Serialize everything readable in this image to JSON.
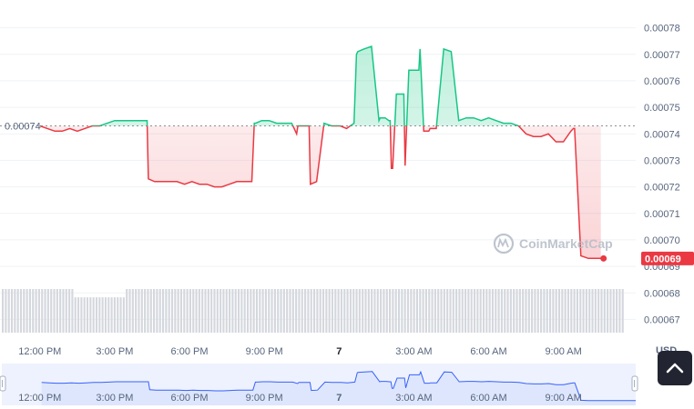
{
  "chart_data": {
    "type": "line",
    "y_ticks": [
      "0.00078",
      "0.00077",
      "0.00076",
      "0.00075",
      "0.00074",
      "0.00073",
      "0.00072",
      "0.00071",
      "0.00070",
      "0.00069",
      "0.00068",
      "0.00067"
    ],
    "ylim": [
      0.000665,
      0.000785
    ],
    "unit_label": "USD",
    "x_ticks": [
      {
        "t": 0,
        "label": "12:00 PM"
      },
      {
        "t": 3,
        "label": "3:00 PM"
      },
      {
        "t": 6,
        "label": "6:00 PM"
      },
      {
        "t": 9,
        "label": "9:00 PM"
      },
      {
        "t": 12,
        "label": "7",
        "bold": true
      },
      {
        "t": 15,
        "label": "3:00 AM"
      },
      {
        "t": 18,
        "label": "6:00 AM"
      },
      {
        "t": 21,
        "label": "9:00 AM"
      }
    ],
    "xlim": [
      -1.6,
      23.9
    ],
    "reference_label": "0.00074",
    "reference_value": 0.000743,
    "current_label": "0.00069",
    "current_value": 0.000693,
    "up_color": "#16c784",
    "down_color": "#ea3943",
    "watermark": "CoinMarketCap",
    "series": {
      "x": [
        0.0,
        0.3,
        0.6,
        0.9,
        1.2,
        1.5,
        1.8,
        2.1,
        2.4,
        2.7,
        3.0,
        3.3,
        3.6,
        3.9,
        4.2,
        4.3,
        4.35,
        4.6,
        4.9,
        5.2,
        5.5,
        5.8,
        6.1,
        6.4,
        6.7,
        7.0,
        7.3,
        7.6,
        7.9,
        8.2,
        8.5,
        8.6,
        8.65,
        8.9,
        9.2,
        9.5,
        9.8,
        10.1,
        10.3,
        10.35,
        10.5,
        10.8,
        10.85,
        11.1,
        11.4,
        11.7,
        12.0,
        12.05,
        12.3,
        12.6,
        12.7,
        12.75,
        13.0,
        13.3,
        13.6,
        13.65,
        13.8,
        13.85,
        14.0,
        14.05,
        14.1,
        14.15,
        14.3,
        14.6,
        14.65,
        14.8,
        14.85,
        15.2,
        15.25,
        15.4,
        15.6,
        15.65,
        15.9,
        16.2,
        16.5,
        16.8,
        17.1,
        17.4,
        17.7,
        18.0,
        18.3,
        18.6,
        18.9,
        19.2,
        19.5,
        19.8,
        20.1,
        20.4,
        20.7,
        21.0,
        21.3,
        21.4,
        21.45,
        21.7,
        22.0,
        22.3,
        22.5
      ],
      "y": [
        0.000743,
        0.000742,
        0.000741,
        0.000741,
        0.000742,
        0.000741,
        0.000742,
        0.000743,
        0.000743,
        0.000744,
        0.000745,
        0.000745,
        0.000745,
        0.000745,
        0.000745,
        0.000745,
        0.000723,
        0.000722,
        0.000722,
        0.000722,
        0.000722,
        0.000721,
        0.000722,
        0.000721,
        0.000721,
        0.00072,
        0.00072,
        0.000721,
        0.000722,
        0.000722,
        0.000722,
        0.000744,
        0.000744,
        0.000745,
        0.000745,
        0.000744,
        0.000744,
        0.000744,
        0.00074,
        0.000743,
        0.000743,
        0.000743,
        0.000721,
        0.000722,
        0.000744,
        0.000743,
        0.000743,
        0.000743,
        0.000742,
        0.000744,
        0.00077,
        0.000771,
        0.000772,
        0.000773,
        0.000745,
        0.000746,
        0.000746,
        0.000746,
        0.000745,
        0.000745,
        0.000727,
        0.000727,
        0.000755,
        0.000755,
        0.000728,
        0.000764,
        0.000764,
        0.000764,
        0.000772,
        0.000741,
        0.000741,
        0.000742,
        0.000742,
        0.000772,
        0.000771,
        0.000745,
        0.000746,
        0.000746,
        0.000745,
        0.000746,
        0.000745,
        0.000744,
        0.000744,
        0.000743,
        0.00074,
        0.000739,
        0.000739,
        0.00074,
        0.000737,
        0.000737,
        0.000741,
        0.000742,
        0.000742,
        0.000694,
        0.000693,
        0.000693,
        0.000693
      ]
    },
    "volume": [
      0.42,
      0.42,
      0.42,
      0.42,
      0.42,
      0.42,
      0.42,
      0.42,
      0.42,
      0.42,
      0.42,
      0.42,
      0.42,
      0.42,
      0.42,
      0.42,
      0.42,
      0.42,
      0.42,
      0.42,
      0.42,
      0.42,
      0.42,
      0.42,
      0.34,
      0.34,
      0.34,
      0.34,
      0.34,
      0.34,
      0.34,
      0.34,
      0.34,
      0.34,
      0.34,
      0.34,
      0.34,
      0.34,
      0.34,
      0.34,
      0.34,
      0.42,
      0.42,
      0.42,
      0.42,
      0.42,
      0.42,
      0.42,
      0.42,
      0.42,
      0.42,
      0.42,
      0.42,
      0.42,
      0.42,
      0.42,
      0.42,
      0.42,
      0.42,
      0.42,
      0.42,
      0.42,
      0.42,
      0.42,
      0.42,
      0.42,
      0.42,
      0.42,
      0.42,
      0.42,
      0.42,
      0.42,
      0.42,
      0.42,
      0.42,
      0.42,
      0.42,
      0.42,
      0.42,
      0.42,
      0.42,
      0.42,
      0.42,
      0.42,
      0.42,
      0.42,
      0.42,
      0.42,
      0.42,
      0.42,
      0.42,
      0.42,
      0.42,
      0.42,
      0.42,
      0.42,
      0.42,
      0.42,
      0.42,
      0.42,
      0.42,
      0.42,
      0.42,
      0.42,
      0.42,
      0.42,
      0.42,
      0.42,
      0.42,
      0.42,
      0.42,
      0.42,
      0.42,
      0.42,
      0.42,
      0.42,
      0.42,
      0.42,
      0.42,
      0.42,
      0.42,
      0.42,
      0.42,
      0.42,
      0.42,
      0.42,
      0.42,
      0.42,
      0.42,
      0.42,
      0.42,
      0.42,
      0.42,
      0.42,
      0.42,
      0.42,
      0.42,
      0.42,
      0.42,
      0.42,
      0.42,
      0.42,
      0.42,
      0.42,
      0.42,
      0.42,
      0.42,
      0.42,
      0.42,
      0.42,
      0.42,
      0.42,
      0.42,
      0.42,
      0.42,
      0.42,
      0.42,
      0.42,
      0.42,
      0.42,
      0.42,
      0.42,
      0.42,
      0.42,
      0.42,
      0.42,
      0.42,
      0.42,
      0.42,
      0.42,
      0.42,
      0.42,
      0.42,
      0.42,
      0.42,
      0.42,
      0.42,
      0.42,
      0.42,
      0.42,
      0.42,
      0.42,
      0.42,
      0.42,
      0.42,
      0.42,
      0.42,
      0.42,
      0.42,
      0.42,
      0.42,
      0.42,
      0.42,
      0.42,
      0.42,
      0.42,
      0.42,
      0.42,
      0.42,
      0.42,
      0.42,
      0.42,
      0.42,
      0.42,
      0.42,
      0.42
    ]
  },
  "navigator": {
    "x_ticks": [
      {
        "t": 0,
        "label": "12:00 PM"
      },
      {
        "t": 3,
        "label": "3:00 PM"
      },
      {
        "t": 6,
        "label": "6:00 PM"
      },
      {
        "t": 9,
        "label": "9:00 PM"
      },
      {
        "t": 12,
        "label": "7",
        "bold": true
      },
      {
        "t": 15,
        "label": "3:00 AM"
      },
      {
        "t": 18,
        "label": "6:00 AM"
      },
      {
        "t": 21,
        "label": "9:00 AM"
      }
    ],
    "line_color": "#3861fb",
    "fill_color": "#dde6fd"
  }
}
